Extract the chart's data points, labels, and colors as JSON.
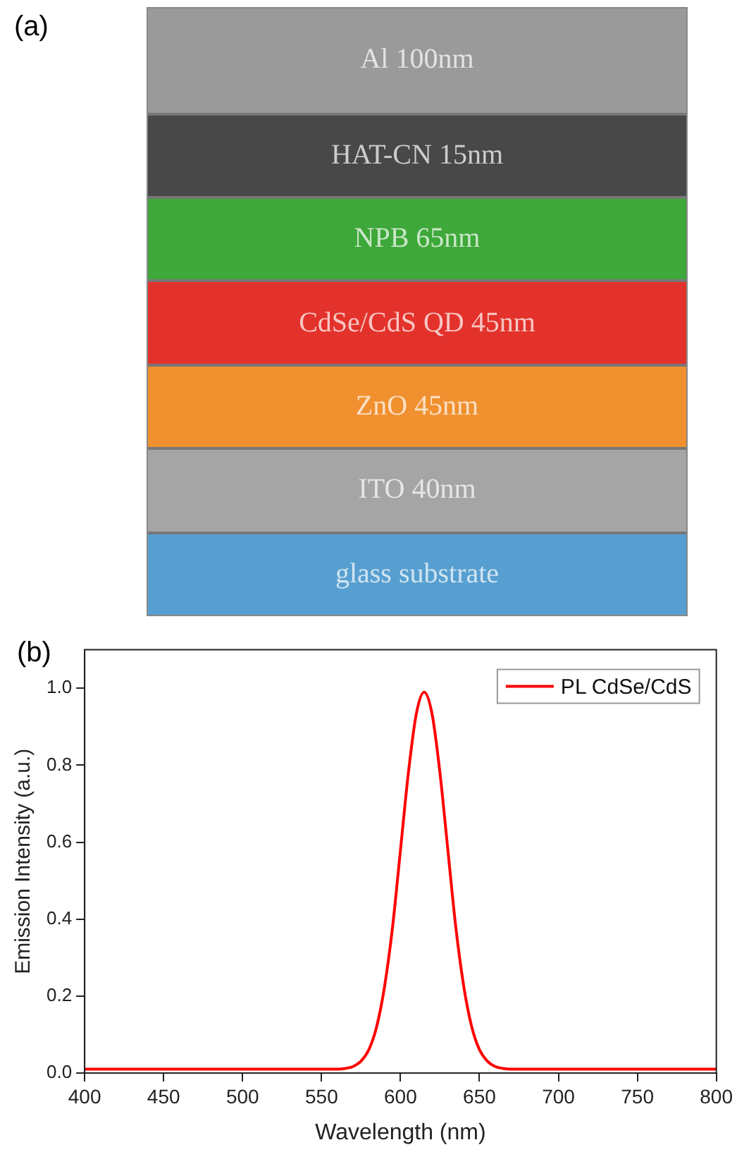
{
  "chart_data": [
    {
      "type": "other",
      "title": "(a)",
      "annotations": [
        "Al 100nm",
        "HAT-CN 15nm",
        "NPB 65nm",
        "CdSe/CdS QD 45nm",
        "ZnO 45nm",
        "ITO 40nm",
        "glass substrate"
      ],
      "colors": [
        "#9a9a9a",
        "#484848",
        "#3ea83a",
        "#e3322b",
        "#f0902f",
        "#a5a5a5",
        "#579fd0"
      ]
    },
    {
      "type": "line",
      "title": "(b)",
      "xlabel": "Wavelength (nm)",
      "ylabel": "Emission Intensity (a.u.)",
      "xlim": [
        400,
        800
      ],
      "xticks": [
        400,
        450,
        500,
        550,
        600,
        650,
        700,
        750,
        800
      ],
      "ylim": [
        0,
        1.1
      ],
      "yticks": [
        {
          "value": 0,
          "label": "0.0"
        },
        0.2,
        0.4,
        0.6,
        0.8,
        {
          "value": 1,
          "label": "1.0"
        }
      ],
      "grid": false,
      "legend": "top right",
      "marker": "none",
      "line_style": "solid",
      "series": [
        {
          "name": "PL CdSe/CdS",
          "color": "#ff0000",
          "x": [
            400,
            560,
            565,
            570,
            575,
            580,
            585,
            590,
            595,
            600,
            605,
            610,
            615,
            620,
            625,
            630,
            635,
            640,
            645,
            650,
            655,
            660,
            665,
            670,
            800
          ],
          "values": [
            0.01,
            0.01,
            0.012,
            0.017,
            0.031,
            0.061,
            0.122,
            0.227,
            0.38,
            0.58,
            0.78,
            0.933,
            0.99,
            0.933,
            0.78,
            0.58,
            0.38,
            0.227,
            0.122,
            0.061,
            0.031,
            0.017,
            0.012,
            0.01,
            0.01
          ]
        }
      ]
    }
  ]
}
